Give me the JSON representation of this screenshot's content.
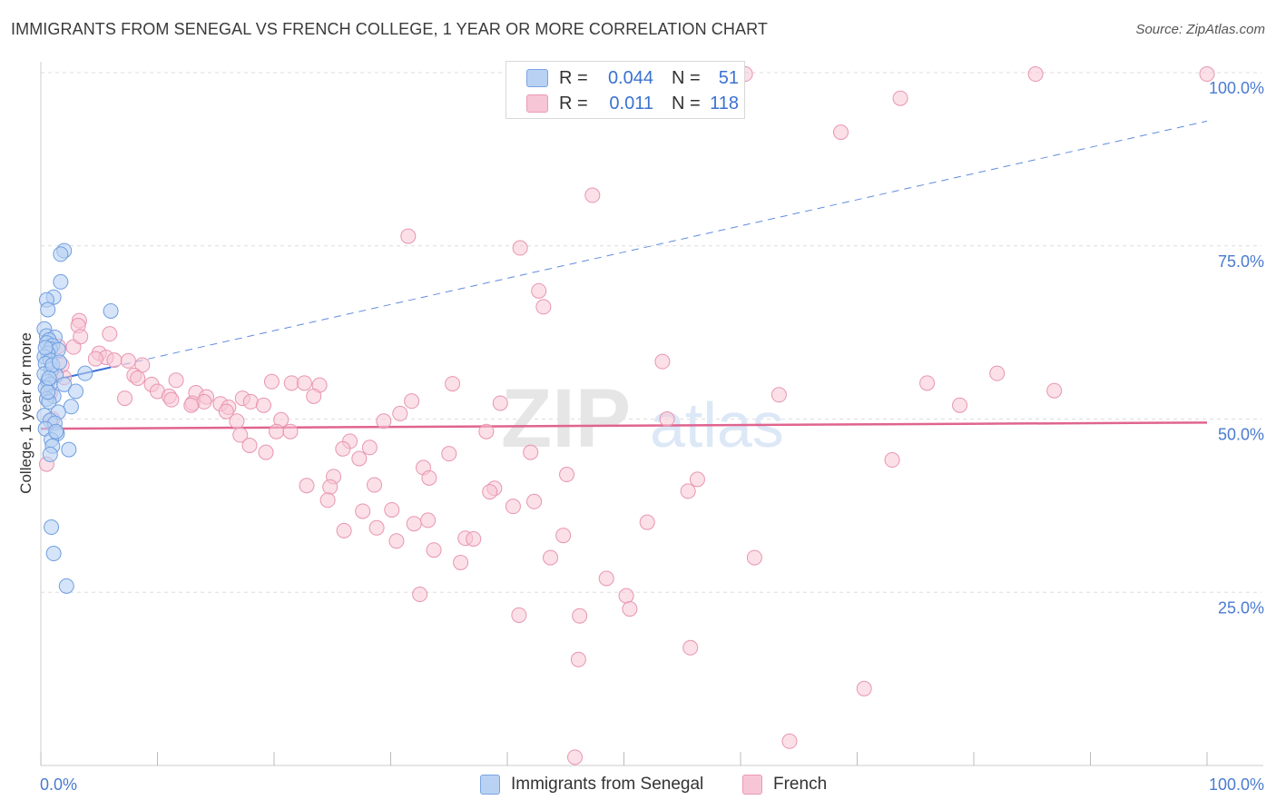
{
  "title": "IMMIGRANTS FROM SENEGAL VS FRENCH COLLEGE, 1 YEAR OR MORE CORRELATION CHART",
  "source": "Source: ZipAtlas.com",
  "watermark": {
    "zip": "ZIP",
    "atlas": "atlas"
  },
  "colors": {
    "blue_fill": "#b9d2f3",
    "blue_stroke": "#6f9ee0",
    "blue_line": "#3b6fd6",
    "pink_fill": "#f7c6d6",
    "pink_stroke": "#e895b1",
    "pink_line": "#e0648f",
    "tick_text": "#4a7bd0",
    "grid": "#dddddd"
  },
  "legend_top": {
    "rows": [
      {
        "r_label": "R =",
        "r_value": "0.044",
        "n_label": "N =",
        "n_value": "51"
      },
      {
        "r_label": "R =",
        "r_value": "0.011",
        "n_label": "N =",
        "n_value": "118"
      }
    ]
  },
  "legend_bottom": {
    "items": [
      "Immigrants from Senegal",
      "French"
    ]
  },
  "chart_data": {
    "type": "scatter",
    "title": "IMMIGRANTS FROM SENEGAL VS FRENCH COLLEGE, 1 YEAR OR MORE CORRELATION CHART",
    "xlabel": "",
    "ylabel": "College, 1 year or more",
    "xlim": [
      0,
      100
    ],
    "ylim": [
      0,
      100
    ],
    "x_tick_labels": [
      "0.0%",
      "100.0%"
    ],
    "y_tick_labels": [
      "100.0%",
      "75.0%",
      "50.0%",
      "25.0%"
    ],
    "y_tick_values": [
      100,
      75,
      50,
      25
    ],
    "grid": true,
    "series": [
      {
        "name": "Immigrants from Senegal",
        "R": 0.044,
        "N": 51,
        "trend": {
          "x0": 0,
          "y0": 55.2,
          "x1": 100,
          "y1": 93,
          "solid_until_x": 6
        },
        "points": [
          [
            2.0,
            74.3
          ],
          [
            1.7,
            73.8
          ],
          [
            1.7,
            69.8
          ],
          [
            1.1,
            67.6
          ],
          [
            0.5,
            67.2
          ],
          [
            0.6,
            65.8
          ],
          [
            6.0,
            65.6
          ],
          [
            0.3,
            63.0
          ],
          [
            0.5,
            62.0
          ],
          [
            1.2,
            61.8
          ],
          [
            0.7,
            61.4
          ],
          [
            0.5,
            61.0
          ],
          [
            1.0,
            60.6
          ],
          [
            0.8,
            60.1
          ],
          [
            1.5,
            60.0
          ],
          [
            0.6,
            59.5
          ],
          [
            0.3,
            59.0
          ],
          [
            0.8,
            58.5
          ],
          [
            0.4,
            58.0
          ],
          [
            0.9,
            57.2
          ],
          [
            0.3,
            56.5
          ],
          [
            1.3,
            56.3
          ],
          [
            3.8,
            56.6
          ],
          [
            0.6,
            55.4
          ],
          [
            0.8,
            55.0
          ],
          [
            2.0,
            55.0
          ],
          [
            0.4,
            54.5
          ],
          [
            3.0,
            54.0
          ],
          [
            1.1,
            53.3
          ],
          [
            0.5,
            52.9
          ],
          [
            0.7,
            52.5
          ],
          [
            2.6,
            51.8
          ],
          [
            1.5,
            51.0
          ],
          [
            0.3,
            50.5
          ],
          [
            0.8,
            49.8
          ],
          [
            1.2,
            49.4
          ],
          [
            0.4,
            48.6
          ],
          [
            1.4,
            47.9
          ],
          [
            0.9,
            47.0
          ],
          [
            1.0,
            46.1
          ],
          [
            2.4,
            45.6
          ],
          [
            0.8,
            44.9
          ],
          [
            0.9,
            34.4
          ],
          [
            1.1,
            30.6
          ],
          [
            2.2,
            25.9
          ],
          [
            1.0,
            57.8
          ],
          [
            0.6,
            53.9
          ],
          [
            1.6,
            58.2
          ],
          [
            0.4,
            60.3
          ],
          [
            1.3,
            48.2
          ],
          [
            0.7,
            55.9
          ]
        ]
      },
      {
        "name": "French",
        "R": 0.011,
        "N": 118,
        "trend": {
          "x0": 0,
          "y0": 48.6,
          "x1": 100,
          "y1": 49.5
        },
        "points": [
          [
            60.4,
            99.8
          ],
          [
            85.3,
            99.8
          ],
          [
            100.0,
            99.8
          ],
          [
            73.7,
            96.3
          ],
          [
            68.6,
            91.4
          ],
          [
            47.3,
            82.3
          ],
          [
            31.5,
            76.4
          ],
          [
            41.1,
            74.7
          ],
          [
            42.7,
            68.5
          ],
          [
            43.1,
            66.2
          ],
          [
            3.3,
            64.2
          ],
          [
            3.2,
            63.5
          ],
          [
            5.9,
            62.3
          ],
          [
            2.8,
            60.4
          ],
          [
            5.0,
            59.5
          ],
          [
            5.6,
            58.9
          ],
          [
            6.3,
            58.5
          ],
          [
            7.5,
            58.4
          ],
          [
            8.7,
            57.8
          ],
          [
            53.3,
            58.3
          ],
          [
            8.0,
            56.3
          ],
          [
            8.3,
            55.9
          ],
          [
            11.6,
            55.6
          ],
          [
            9.5,
            55.0
          ],
          [
            19.8,
            55.4
          ],
          [
            21.5,
            55.2
          ],
          [
            22.6,
            55.2
          ],
          [
            23.9,
            54.9
          ],
          [
            35.3,
            55.1
          ],
          [
            76.0,
            55.2
          ],
          [
            82.0,
            56.6
          ],
          [
            86.9,
            54.1
          ],
          [
            10.0,
            54.0
          ],
          [
            11.0,
            53.3
          ],
          [
            13.3,
            53.8
          ],
          [
            14.2,
            53.2
          ],
          [
            7.2,
            53.0
          ],
          [
            11.2,
            52.8
          ],
          [
            13.0,
            52.3
          ],
          [
            14.0,
            52.5
          ],
          [
            15.4,
            52.2
          ],
          [
            16.1,
            51.7
          ],
          [
            17.3,
            53.0
          ],
          [
            18.0,
            52.5
          ],
          [
            19.1,
            52.0
          ],
          [
            23.4,
            53.3
          ],
          [
            31.8,
            52.6
          ],
          [
            39.4,
            52.3
          ],
          [
            63.3,
            53.5
          ],
          [
            78.8,
            52.0
          ],
          [
            12.9,
            52.0
          ],
          [
            15.9,
            51.1
          ],
          [
            16.8,
            49.7
          ],
          [
            20.6,
            49.9
          ],
          [
            29.4,
            49.7
          ],
          [
            30.8,
            50.8
          ],
          [
            53.7,
            50.0
          ],
          [
            17.1,
            47.7
          ],
          [
            20.2,
            48.2
          ],
          [
            21.4,
            48.2
          ],
          [
            38.2,
            48.2
          ],
          [
            17.9,
            46.2
          ],
          [
            26.5,
            46.8
          ],
          [
            25.9,
            45.7
          ],
          [
            28.2,
            45.9
          ],
          [
            19.3,
            45.2
          ],
          [
            27.3,
            44.3
          ],
          [
            35.0,
            45.0
          ],
          [
            42.0,
            45.2
          ],
          [
            32.8,
            43.0
          ],
          [
            73.0,
            44.1
          ],
          [
            25.1,
            41.7
          ],
          [
            33.3,
            41.5
          ],
          [
            45.1,
            42.0
          ],
          [
            56.3,
            41.3
          ],
          [
            24.8,
            40.2
          ],
          [
            28.6,
            40.5
          ],
          [
            22.8,
            40.4
          ],
          [
            38.9,
            40.0
          ],
          [
            38.5,
            39.5
          ],
          [
            55.5,
            39.6
          ],
          [
            24.6,
            38.3
          ],
          [
            42.3,
            38.1
          ],
          [
            40.5,
            37.4
          ],
          [
            27.6,
            36.7
          ],
          [
            30.1,
            36.9
          ],
          [
            33.2,
            35.4
          ],
          [
            32.0,
            34.9
          ],
          [
            52.0,
            35.1
          ],
          [
            26.0,
            33.9
          ],
          [
            28.8,
            34.3
          ],
          [
            44.8,
            33.2
          ],
          [
            36.4,
            32.8
          ],
          [
            37.1,
            32.7
          ],
          [
            30.5,
            32.4
          ],
          [
            33.7,
            31.1
          ],
          [
            43.7,
            30.0
          ],
          [
            61.2,
            30.0
          ],
          [
            36.0,
            29.3
          ],
          [
            48.5,
            27.0
          ],
          [
            32.5,
            24.7
          ],
          [
            50.2,
            24.5
          ],
          [
            50.5,
            22.6
          ],
          [
            41.0,
            21.7
          ],
          [
            46.2,
            21.6
          ],
          [
            55.7,
            17.0
          ],
          [
            46.1,
            15.3
          ],
          [
            70.6,
            11.1
          ],
          [
            64.2,
            3.5
          ],
          [
            45.8,
            1.2
          ],
          [
            0.5,
            43.5
          ],
          [
            1.0,
            50.0
          ],
          [
            2.0,
            56.0
          ],
          [
            1.5,
            60.5
          ],
          [
            1.8,
            57.8
          ],
          [
            0.8,
            53.8
          ],
          [
            3.4,
            61.9
          ],
          [
            4.7,
            58.7
          ]
        ]
      }
    ]
  }
}
